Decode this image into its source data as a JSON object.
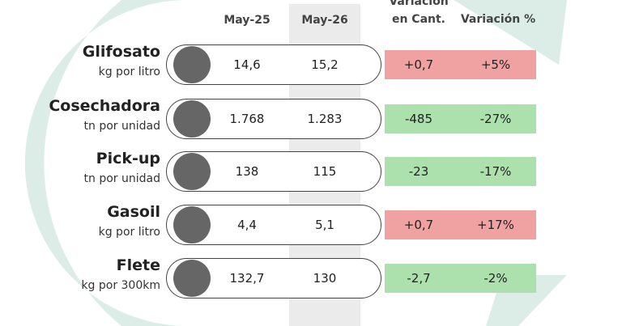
{
  "header": {
    "columns": [
      "May-25",
      "May-26",
      "Variación",
      "en Cant.",
      "Variación %"
    ]
  },
  "rows": [
    {
      "name": "Glifosato",
      "unit": "kg por litro",
      "may25": "14,6",
      "may26": "15,2",
      "var_cant": "+0,7",
      "var_pct": "+5%"
    },
    {
      "name": "Cosechadora",
      "unit": "tn por unidad",
      "may25": "1.768",
      "may26": "1.283",
      "var_cant": "-485",
      "var_pct": "-27%"
    },
    {
      "name": "Pick-up",
      "unit": "tn por unidad",
      "may25": "138",
      "may26": "115",
      "var_cant": "-23",
      "var_pct": "-17%"
    },
    {
      "name": "Gasoil",
      "unit": "kg por litro",
      "may25": "4,4",
      "may26": "5,1",
      "var_cant": "+0,7",
      "var_pct": "+17%"
    },
    {
      "name": "Flete",
      "unit": "kg por 300km",
      "may25": "132,7",
      "may26": "130",
      "var_cant": "-2,7",
      "var_pct": "-2%"
    }
  ]
}
